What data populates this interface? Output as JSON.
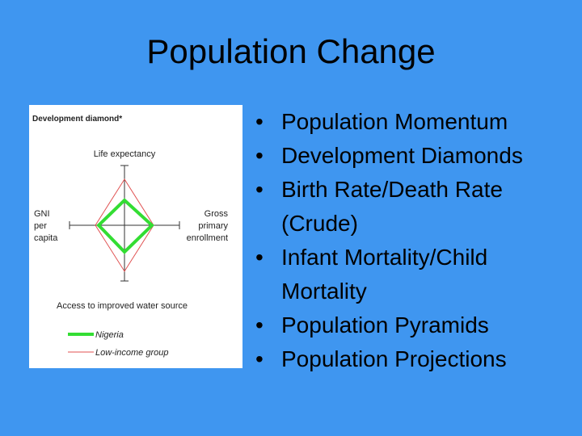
{
  "slide": {
    "title": "Population Change"
  },
  "figure": {
    "title": "Development diamond*",
    "axis_top": "Life expectancy",
    "axis_left": [
      "GNI",
      "per",
      "capita"
    ],
    "axis_right": [
      "Gross",
      "primary",
      "enrollment"
    ],
    "axis_bottom": "Access to improved water source",
    "legend": [
      {
        "label": "Nigeria",
        "color": "#33dd33"
      },
      {
        "label": "Low-income group",
        "color": "#e05050"
      }
    ]
  },
  "bullets": [
    {
      "text": "Population Momentum"
    },
    {
      "text": "Development Diamonds"
    },
    {
      "text": "Birth Rate/Death Rate (Crude)"
    },
    {
      "text": "Infant Mortality/Child Mortality"
    },
    {
      "text": "Population Pyramids"
    },
    {
      "text": "Population Projections"
    }
  ],
  "colors": {
    "background": "#3f96f0",
    "text": "#000000"
  }
}
